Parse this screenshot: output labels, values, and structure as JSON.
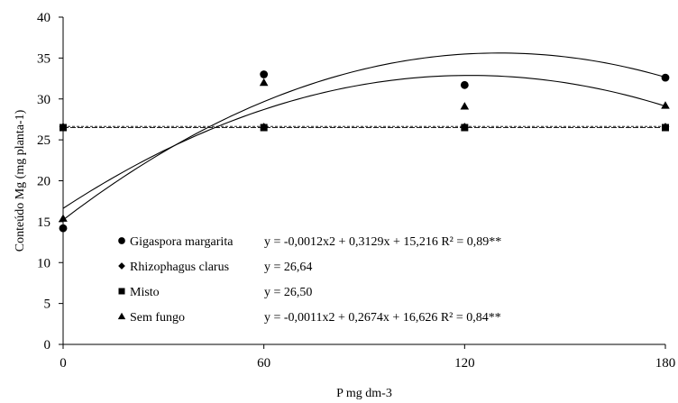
{
  "chart_data": {
    "type": "scatter",
    "xlabel": "P mg dm-3",
    "ylabel": "Conteúdo Mg (mg planta-1)",
    "xlim": [
      0,
      180
    ],
    "ylim": [
      0,
      40
    ],
    "x_ticks": [
      "0",
      "60",
      "120",
      "180"
    ],
    "y_ticks": [
      "0",
      "5",
      "10",
      "15",
      "20",
      "25",
      "30",
      "35",
      "40"
    ],
    "grid": false,
    "legend_placement": "bottom-left",
    "series": [
      {
        "name": "Gigaspora margarita",
        "marker": "circle",
        "x": [
          0,
          60,
          120,
          180
        ],
        "y": [
          14.2,
          33.0,
          31.7,
          32.6
        ],
        "equation": "y = -0,0012x2 + 0,3129x + 15,216 R² = 0,89**",
        "fit": {
          "kind": "quadratic",
          "a": -0.0012,
          "b": 0.3129,
          "c": 15.216
        }
      },
      {
        "name": "Rhizophagus clarus",
        "marker": "diamond",
        "x": [
          0,
          60,
          120,
          180
        ],
        "y": [
          26.6,
          26.6,
          26.6,
          26.6
        ],
        "equation": "y = 26,64",
        "fit": {
          "kind": "constant",
          "c": 26.64
        }
      },
      {
        "name": "Misto",
        "marker": "square",
        "x": [
          0,
          60,
          120,
          180
        ],
        "y": [
          26.5,
          26.5,
          26.5,
          26.5
        ],
        "equation": "y = 26,50",
        "fit": {
          "kind": "constant",
          "c": 26.5
        }
      },
      {
        "name": "Sem fungo",
        "marker": "triangle",
        "x": [
          0,
          60,
          120,
          180
        ],
        "y": [
          15.4,
          32.0,
          29.1,
          29.2
        ],
        "equation": "y = -0,0011x2 + 0,2674x + 16,626 R² = 0,84**",
        "fit": {
          "kind": "quadratic",
          "a": -0.0011,
          "b": 0.2674,
          "c": 16.626
        }
      }
    ]
  }
}
